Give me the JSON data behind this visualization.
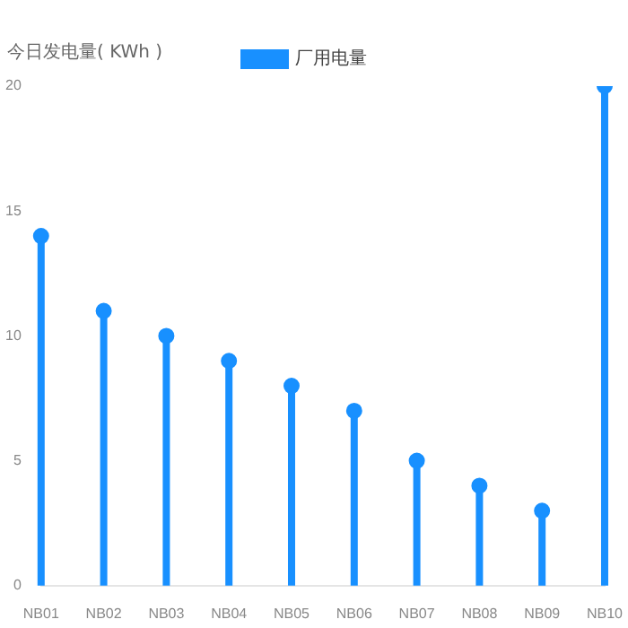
{
  "chart_data": {
    "type": "lollipop",
    "ylabel": "今日发电量( KWh )",
    "categories": [
      "NB01",
      "NB02",
      "NB03",
      "NB04",
      "NB05",
      "NB06",
      "NB07",
      "NB08",
      "NB09",
      "NB10"
    ],
    "series": [
      {
        "name": "厂用电量",
        "color": "#1890ff",
        "values": [
          14,
          11,
          10,
          9,
          8,
          7,
          5,
          4,
          3,
          20
        ]
      }
    ],
    "ylim": [
      0,
      20
    ],
    "yticks": [
      0,
      5,
      10,
      15,
      20
    ],
    "grid": false,
    "legend": "top",
    "marker": "circle"
  }
}
